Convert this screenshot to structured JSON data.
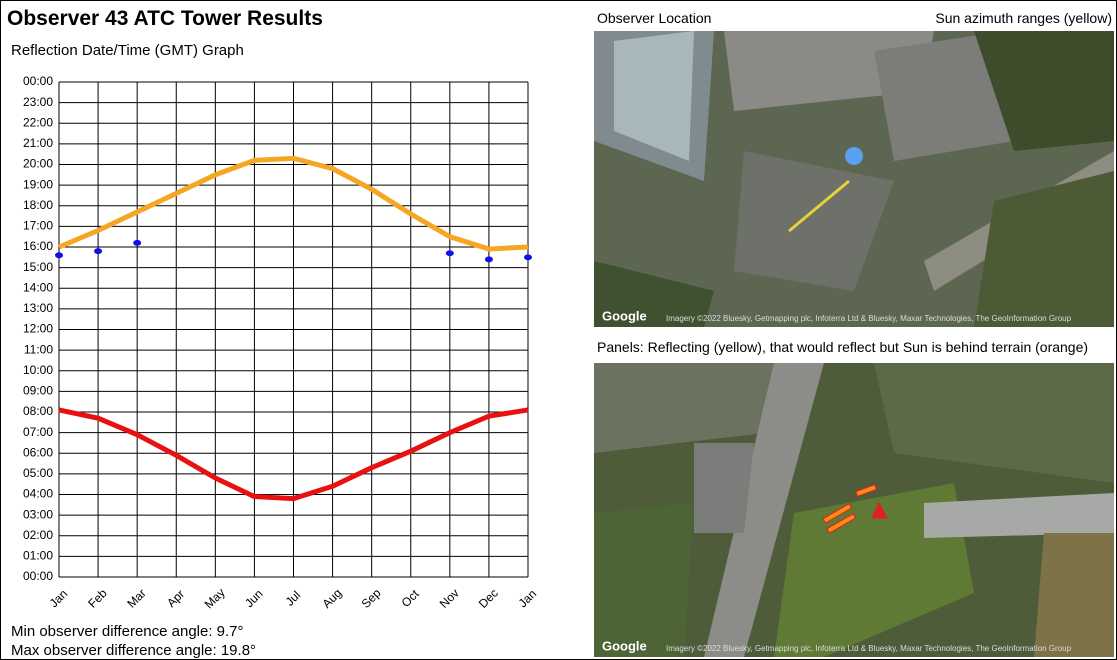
{
  "header": {
    "title": "Observer 43 ATC Tower Results"
  },
  "chart_data": {
    "type": "line",
    "title": "Reflection Date/Time (GMT) Graph",
    "categories": [
      "Jan",
      "Feb",
      "Mar",
      "Apr",
      "May",
      "Jun",
      "Jul",
      "Aug",
      "Sep",
      "Oct",
      "Nov",
      "Dec",
      "Jan"
    ],
    "series": [
      {
        "color": "#f5a623",
        "values": [
          16.0,
          16.8,
          17.7,
          18.6,
          19.5,
          20.2,
          20.3,
          19.8,
          18.8,
          17.6,
          16.5,
          15.9,
          16.0
        ]
      },
      {
        "color": "#e81010",
        "values": [
          8.1,
          7.7,
          6.9,
          5.9,
          4.8,
          3.9,
          3.8,
          4.4,
          5.3,
          6.1,
          7.0,
          7.8,
          8.1
        ]
      },
      {
        "color": "#1010e8",
        "type": "scatter",
        "values": [
          15.6,
          15.8,
          16.2,
          null,
          null,
          null,
          null,
          null,
          null,
          null,
          15.7,
          15.4,
          15.5
        ]
      }
    ],
    "ylim": [
      0,
      24
    ],
    "yticks": [
      {
        "value": 0,
        "label": "00:00"
      },
      {
        "value": 1,
        "label": "01:00"
      },
      {
        "value": 2,
        "label": "02:00"
      },
      {
        "value": 3,
        "label": "03:00"
      },
      {
        "value": 4,
        "label": "04:00"
      },
      {
        "value": 5,
        "label": "05:00"
      },
      {
        "value": 6,
        "label": "06:00"
      },
      {
        "value": 7,
        "label": "07:00"
      },
      {
        "value": 8,
        "label": "08:00"
      },
      {
        "value": 9,
        "label": "09:00"
      },
      {
        "value": 10,
        "label": "10:00"
      },
      {
        "value": 11,
        "label": "11:00"
      },
      {
        "value": 12,
        "label": "12:00"
      },
      {
        "value": 13,
        "label": "13:00"
      },
      {
        "value": 14,
        "label": "14:00"
      },
      {
        "value": 15,
        "label": "15:00"
      },
      {
        "value": 16,
        "label": "16:00"
      },
      {
        "value": 17,
        "label": "17:00"
      },
      {
        "value": 18,
        "label": "18:00"
      },
      {
        "value": 19,
        "label": "19:00"
      },
      {
        "value": 20,
        "label": "20:00"
      },
      {
        "value": 21,
        "label": "21:00"
      },
      {
        "value": 22,
        "label": "22:00"
      },
      {
        "value": 23,
        "label": "23:00"
      },
      {
        "value": 24,
        "label": "00:00"
      }
    ],
    "grid": true
  },
  "stats": [
    "Min observer difference angle: 9.7°",
    "Max observer difference angle: 19.8°"
  ],
  "maps": [
    {
      "title": "Observer Location",
      "note": "Sun azimuth ranges (yellow)",
      "logo": "Google",
      "attribution": "Imagery ©2022 Bluesky, Getmapping plc, Infoterra Ltd & Bluesky, Maxar Technologies, The GeoInformation Group"
    },
    {
      "title": "Panels: Reflecting (yellow), that would reflect but Sun is behind terrain (orange)",
      "logo": "Google",
      "attribution": "Imagery ©2022 Bluesky, Getmapping plc, Infoterra Ltd & Bluesky, Maxar Technologies, The GeoInformation Group"
    }
  ]
}
